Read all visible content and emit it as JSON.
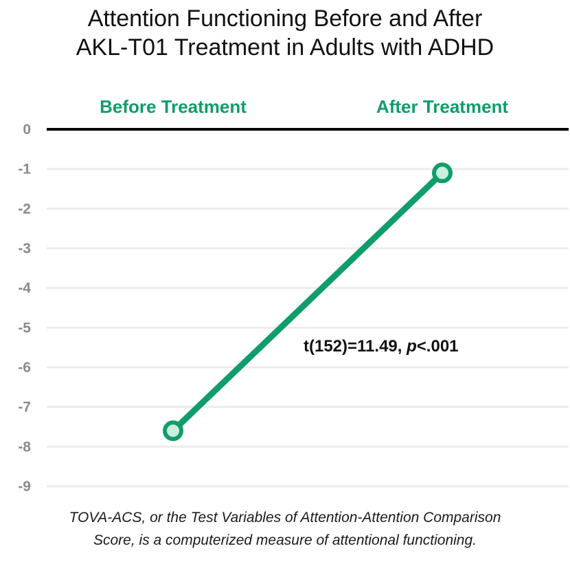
{
  "title_lines": [
    "Attention Functioning Before and After",
    "AKL-T01 Treatment in Adults with ADHD"
  ],
  "footnote_lines": [
    "TOVA-ACS, or the Test Variables of Attention-Attention Comparison",
    "Score, is a computerized measure of attentional functioning."
  ],
  "colors": {
    "series": "#0f9d6b",
    "marker_fill": "#c8f0dc",
    "grid": "#ececec",
    "zero_line": "#000000",
    "tick_text": "#8a8a8a"
  },
  "chart_data": {
    "type": "line",
    "title": "Attention Functioning Before and After AKL-T01 Treatment in Adults with ADHD",
    "categories": [
      "Before Treatment",
      "After Treatment"
    ],
    "category_position": "top",
    "series": [
      {
        "values": [
          -7.6,
          -1.1
        ]
      }
    ],
    "y_ticks": [
      "0",
      "-1",
      "-2",
      "-3",
      "-4",
      "-5",
      "-6",
      "-7",
      "-8",
      "-9"
    ],
    "ylim": [
      -9,
      0
    ],
    "grid": true,
    "annotation": {
      "stat": "t(152)=11.49, ",
      "p_label": "p",
      "p_value": "<.001"
    }
  }
}
